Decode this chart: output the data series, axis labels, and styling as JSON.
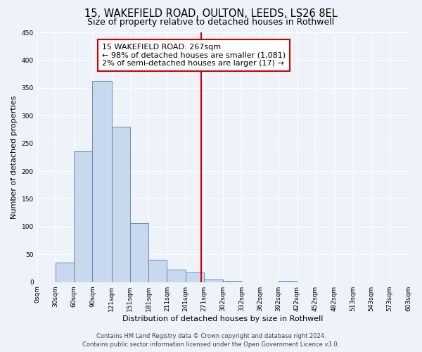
{
  "title": "15, WAKEFIELD ROAD, OULTON, LEEDS, LS26 8EL",
  "subtitle": "Size of property relative to detached houses in Rothwell",
  "xlabel": "Distribution of detached houses by size in Rothwell",
  "ylabel": "Number of detached properties",
  "bar_values": [
    0,
    35,
    235,
    362,
    280,
    106,
    40,
    22,
    18,
    5,
    2,
    0,
    0,
    2,
    0,
    0,
    0,
    0,
    0,
    0
  ],
  "bin_edges": [
    0,
    30,
    60,
    90,
    121,
    151,
    181,
    211,
    241,
    271,
    302,
    332,
    362,
    392,
    422,
    452,
    482,
    513,
    543,
    573,
    603
  ],
  "xlabels": [
    "0sqm",
    "30sqm",
    "60sqm",
    "90sqm",
    "121sqm",
    "151sqm",
    "181sqm",
    "211sqm",
    "241sqm",
    "271sqm",
    "302sqm",
    "332sqm",
    "362sqm",
    "392sqm",
    "422sqm",
    "452sqm",
    "482sqm",
    "513sqm",
    "543sqm",
    "573sqm",
    "603sqm"
  ],
  "ylim": [
    0,
    450
  ],
  "yticks": [
    0,
    50,
    100,
    150,
    200,
    250,
    300,
    350,
    400,
    450
  ],
  "vline_x": 267,
  "vline_color": "#cc0000",
  "bar_facecolor": "#c8d9ee",
  "bar_edgecolor": "#5580b0",
  "background_color": "#eef2f9",
  "grid_color": "#ffffff",
  "annotation_title": "15 WAKEFIELD ROAD: 267sqm",
  "annotation_line1": "← 98% of detached houses are smaller (1,081)",
  "annotation_line2": "2% of semi-detached houses are larger (17) →",
  "annotation_box_edge": "#cc0000",
  "footer_line1": "Contains HM Land Registry data © Crown copyright and database right 2024.",
  "footer_line2": "Contains public sector information licensed under the Open Government Licence v3.0.",
  "title_fontsize": 10.5,
  "subtitle_fontsize": 9,
  "axis_label_fontsize": 8,
  "tick_fontsize": 6.5,
  "annotation_fontsize": 8,
  "footer_fontsize": 6
}
